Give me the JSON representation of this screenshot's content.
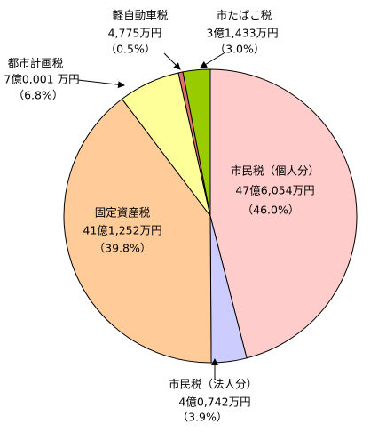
{
  "chart_data": {
    "type": "pie",
    "categories": [
      "市民税（個人分）",
      "市民税（法人分）",
      "固定資産税",
      "都市計画税",
      "軽自動車税",
      "市たばこ税"
    ],
    "amounts": [
      "47億6,054万円",
      "4億0,742万円",
      "41億1,252万円",
      "7億0,001 万円",
      "4,775万円",
      "3億1,433万円"
    ],
    "values": [
      46.0,
      3.9,
      39.8,
      6.8,
      0.5,
      3.0
    ],
    "value_labels": [
      "（46.0%）",
      "（3.9%）",
      "（39.8%）",
      "（6.8%）",
      "（0.5%）",
      "（3.0%）"
    ],
    "colors": [
      "#ffcccc",
      "#ccccff",
      "#ffcc99",
      "#ffff99",
      "#e07070",
      "#99cc00"
    ]
  }
}
